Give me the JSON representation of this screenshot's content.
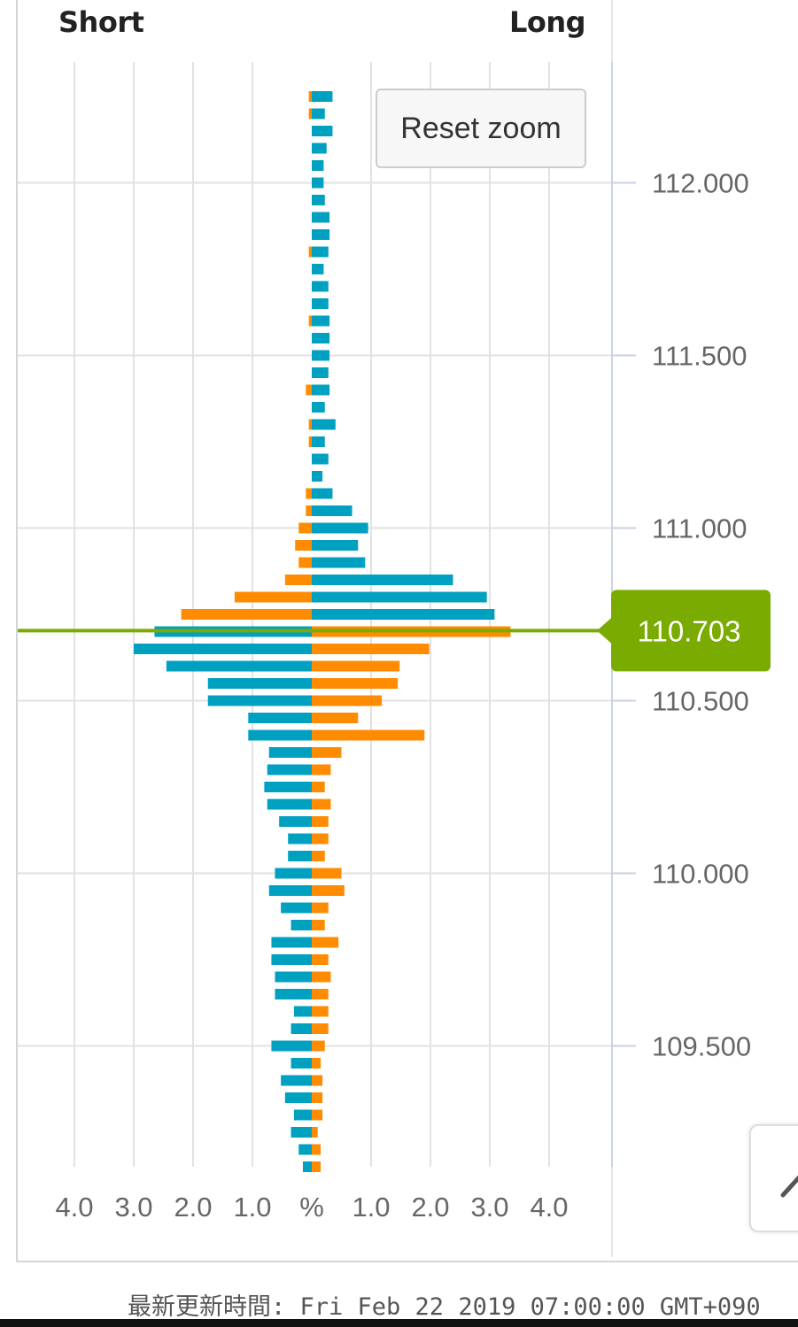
{
  "header": {
    "short_label": "Short",
    "long_label": "Long"
  },
  "reset_zoom_label": "Reset zoom",
  "footer": {
    "updated": "最新更新時間: Fri Feb 22 2019 07:00:00 GMT+090"
  },
  "colors": {
    "short_bar": "#ff8c00",
    "long_bar": "#00a0c0",
    "current_price": "#7aab00",
    "grid": "#e2e2e2"
  },
  "side_button_icon": "pencil-icon",
  "chart_data": {
    "type": "bar",
    "orientation": "horizontal-diverging",
    "x_tick_labels": [
      "4.0",
      "3.0",
      "2.0",
      "1.0",
      "%",
      "1.0",
      "2.0",
      "3.0",
      "4.0"
    ],
    "x_ticks": [
      -4,
      -3,
      -2,
      -1,
      0,
      1,
      2,
      3,
      4
    ],
    "xlim": [
      -4,
      4
    ],
    "ylim": [
      109.15,
      112.35
    ],
    "y_ticks": [
      "112.000",
      "111.500",
      "111.000",
      "110.500",
      "110.000",
      "109.500"
    ],
    "current_price": {
      "label": "110.703",
      "value": 110.703
    },
    "series": [
      {
        "name": "Short",
        "side": "left",
        "color": "#ff8c00",
        "points": [
          [
            112.25,
            0.05
          ],
          [
            112.2,
            0.05
          ],
          [
            111.8,
            0.05
          ],
          [
            111.6,
            0.05
          ],
          [
            111.4,
            0.1
          ],
          [
            111.3,
            0.05
          ],
          [
            111.25,
            0.05
          ],
          [
            111.1,
            0.1
          ],
          [
            111.05,
            0.1
          ],
          [
            111.0,
            0.22
          ],
          [
            110.95,
            0.28
          ],
          [
            110.9,
            0.22
          ],
          [
            110.85,
            0.45
          ],
          [
            110.8,
            1.3
          ],
          [
            110.75,
            2.2
          ]
        ]
      },
      {
        "name": "Long",
        "side": "right",
        "color": "#00a0c0",
        "points": [
          [
            112.25,
            0.35
          ],
          [
            112.2,
            0.22
          ],
          [
            112.15,
            0.35
          ],
          [
            112.1,
            0.25
          ],
          [
            112.05,
            0.2
          ],
          [
            112.0,
            0.2
          ],
          [
            111.95,
            0.22
          ],
          [
            111.9,
            0.3
          ],
          [
            111.85,
            0.3
          ],
          [
            111.8,
            0.28
          ],
          [
            111.75,
            0.2
          ],
          [
            111.7,
            0.28
          ],
          [
            111.65,
            0.28
          ],
          [
            111.6,
            0.3
          ],
          [
            111.55,
            0.3
          ],
          [
            111.5,
            0.3
          ],
          [
            111.45,
            0.28
          ],
          [
            111.4,
            0.3
          ],
          [
            111.35,
            0.22
          ],
          [
            111.3,
            0.4
          ],
          [
            111.25,
            0.22
          ],
          [
            111.2,
            0.28
          ],
          [
            111.15,
            0.18
          ],
          [
            111.1,
            0.35
          ],
          [
            111.05,
            0.68
          ],
          [
            111.0,
            0.95
          ],
          [
            110.95,
            0.78
          ],
          [
            110.9,
            0.9
          ],
          [
            110.85,
            2.38
          ],
          [
            110.8,
            2.95
          ],
          [
            110.75,
            3.08
          ]
        ]
      },
      {
        "name": "Short",
        "side": "left",
        "color": "#00a0c0",
        "points": [
          [
            110.7,
            2.65
          ],
          [
            110.65,
            3.0
          ],
          [
            110.6,
            2.45
          ],
          [
            110.55,
            1.75
          ],
          [
            110.5,
            1.75
          ],
          [
            110.45,
            1.07
          ],
          [
            110.4,
            1.07
          ],
          [
            110.35,
            0.72
          ],
          [
            110.3,
            0.75
          ],
          [
            110.25,
            0.8
          ],
          [
            110.2,
            0.75
          ],
          [
            110.15,
            0.55
          ],
          [
            110.1,
            0.4
          ],
          [
            110.05,
            0.4
          ],
          [
            110.0,
            0.62
          ],
          [
            109.95,
            0.72
          ],
          [
            109.9,
            0.52
          ],
          [
            109.85,
            0.35
          ],
          [
            109.8,
            0.68
          ],
          [
            109.75,
            0.68
          ],
          [
            109.7,
            0.62
          ],
          [
            109.65,
            0.62
          ],
          [
            109.6,
            0.3
          ],
          [
            109.55,
            0.35
          ],
          [
            109.5,
            0.68
          ],
          [
            109.45,
            0.35
          ],
          [
            109.4,
            0.52
          ],
          [
            109.35,
            0.45
          ],
          [
            109.3,
            0.3
          ],
          [
            109.25,
            0.35
          ],
          [
            109.2,
            0.22
          ],
          [
            109.15,
            0.15
          ]
        ]
      },
      {
        "name": "Long",
        "side": "right",
        "color": "#ff8c00",
        "points": [
          [
            110.7,
            3.35
          ],
          [
            110.65,
            1.98
          ],
          [
            110.6,
            1.48
          ],
          [
            110.55,
            1.45
          ],
          [
            110.5,
            1.18
          ],
          [
            110.45,
            0.78
          ],
          [
            110.4,
            1.9
          ],
          [
            110.35,
            0.5
          ],
          [
            110.3,
            0.32
          ],
          [
            110.25,
            0.22
          ],
          [
            110.2,
            0.32
          ],
          [
            110.15,
            0.28
          ],
          [
            110.1,
            0.28
          ],
          [
            110.05,
            0.22
          ],
          [
            110.0,
            0.5
          ],
          [
            109.95,
            0.55
          ],
          [
            109.9,
            0.28
          ],
          [
            109.85,
            0.22
          ],
          [
            109.8,
            0.45
          ],
          [
            109.75,
            0.28
          ],
          [
            109.7,
            0.32
          ],
          [
            109.65,
            0.28
          ],
          [
            109.6,
            0.28
          ],
          [
            109.55,
            0.28
          ],
          [
            109.5,
            0.22
          ],
          [
            109.45,
            0.15
          ],
          [
            109.4,
            0.18
          ],
          [
            109.35,
            0.18
          ],
          [
            109.3,
            0.18
          ],
          [
            109.25,
            0.1
          ],
          [
            109.2,
            0.15
          ],
          [
            109.15,
            0.15
          ]
        ]
      }
    ]
  }
}
